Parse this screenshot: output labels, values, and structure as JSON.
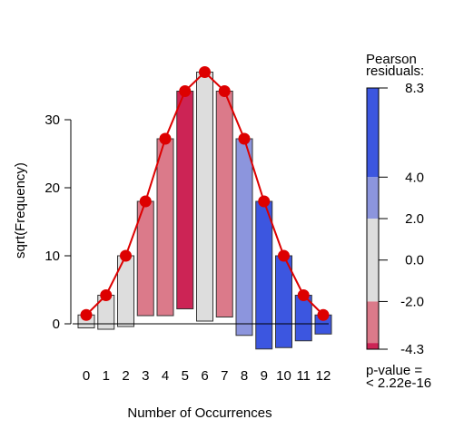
{
  "chart_data": {
    "type": "bar",
    "xlabel": "Number of Occurrences",
    "ylabel": "sqrt(Frequency)",
    "ylim": [
      -4,
      38
    ],
    "yticks": [
      0,
      10,
      20,
      30
    ],
    "categories": [
      "0",
      "1",
      "2",
      "3",
      "4",
      "5",
      "6",
      "7",
      "8",
      "9",
      "10",
      "11",
      "12"
    ],
    "observed_sqrt": [
      1.3,
      4.2,
      10.0,
      18.0,
      27.2,
      34.2,
      37.0,
      34.2,
      27.2,
      18.0,
      10.0,
      4.2,
      1.3
    ],
    "bar_bottom": [
      -0.6,
      -0.8,
      -0.4,
      1.2,
      1.2,
      2.2,
      0.4,
      1.0,
      -1.7,
      -3.7,
      -3.5,
      -2.5,
      -1.5
    ],
    "bar_residual_class": [
      "neutral",
      "neutral",
      "neutral",
      "neg_mid",
      "neg_mid",
      "neg_high",
      "neutral",
      "neg_mid",
      "pos_mid",
      "pos_high",
      "pos_high",
      "pos_high",
      "pos_high"
    ],
    "expected_series": {
      "x": [
        0,
        1,
        2,
        3,
        4,
        5,
        6,
        7,
        8,
        9,
        10,
        11,
        12
      ],
      "y": [
        1.3,
        4.2,
        10.0,
        18.0,
        27.2,
        34.2,
        37.0,
        34.2,
        27.2,
        18.0,
        10.0,
        4.2,
        1.3
      ],
      "color": "#dd0000"
    },
    "residual_colors": {
      "pos_high": "#3c56e0",
      "pos_mid": "#8c95dd",
      "neutral": "#dddddd",
      "neg_mid": "#db7a8a",
      "neg_high": "#cc2455"
    },
    "legend": {
      "title_line1": "Pearson",
      "title_line2": "residuals:",
      "max_label": "8.3",
      "min_label": "-4.3",
      "ticks": [
        "4.0",
        "2.0",
        "0.0",
        "-2.0"
      ],
      "range": [
        -4.3,
        8.3
      ],
      "segments": [
        {
          "from": 4.0,
          "to": 8.3,
          "cls": "pos_high"
        },
        {
          "from": 2.0,
          "to": 4.0,
          "cls": "pos_mid"
        },
        {
          "from": -2.0,
          "to": 2.0,
          "cls": "neutral"
        },
        {
          "from": -4.0,
          "to": -2.0,
          "cls": "neg_mid"
        },
        {
          "from": -4.3,
          "to": -4.0,
          "cls": "neg_high"
        }
      ],
      "pvalue_line1": "p-value =",
      "pvalue_line2": "< 2.22e-16"
    }
  }
}
